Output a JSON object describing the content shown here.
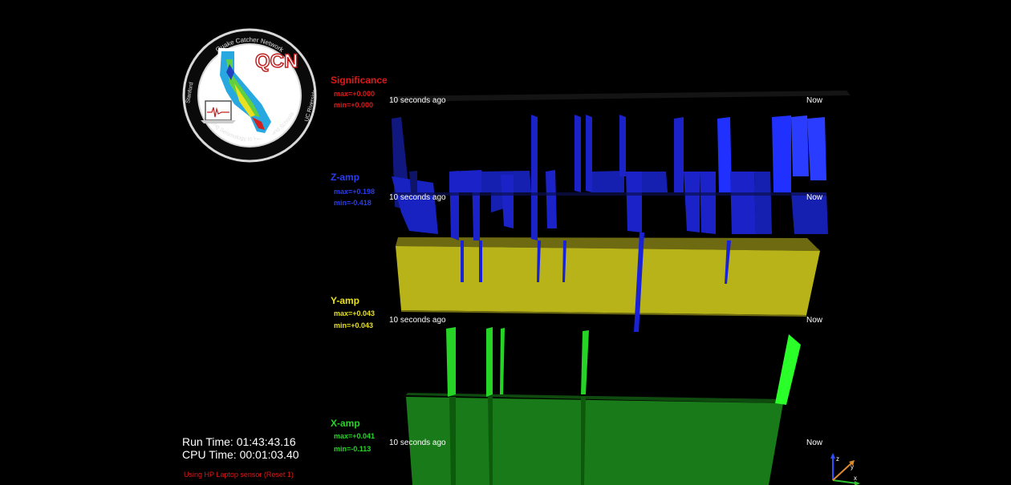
{
  "logo": {
    "ring_top": "Quake Catcher Network",
    "ring_bottom": "Bringing Seismology to Homes and Schools",
    "ring_left": "Stanford",
    "ring_right": "UC Riverside",
    "mark": "QCN"
  },
  "channels": [
    {
      "id": "significance",
      "name": "Significance",
      "max": "max=+0.000",
      "min": "min=+0.000",
      "color": "#e01818",
      "axis_left": "10 seconds ago",
      "axis_right": "Now"
    },
    {
      "id": "z",
      "name": "Z-amp",
      "max": "max=+0.198",
      "min": "min=-0.418",
      "color": "#2a3cf0",
      "axis_left": "10 seconds ago",
      "axis_right": "Now"
    },
    {
      "id": "y",
      "name": "Y-amp",
      "max": "max=+0.043",
      "min": "min=+0.043",
      "color": "#e8e21c",
      "axis_left": "10 seconds ago",
      "axis_right": "Now"
    },
    {
      "id": "x",
      "name": "X-amp",
      "max": "max=+0.041",
      "min": "min=-0.113",
      "color": "#25d425",
      "axis_left": "10 seconds ago",
      "axis_right": "Now"
    }
  ],
  "status": {
    "run_time": "Run Time: 01:43:43.16",
    "cpu_time": "CPU Time: 00:01:03.40",
    "sensor": "Using HP Laptop sensor (Reset 1)"
  },
  "gizmo": {
    "x": "x",
    "y": "y",
    "z": "z"
  },
  "colors": {
    "background": "#000000",
    "z": "#1a22d8",
    "y": "#c8c31a",
    "x": "#1f9e1f",
    "significance": "#e01818"
  }
}
